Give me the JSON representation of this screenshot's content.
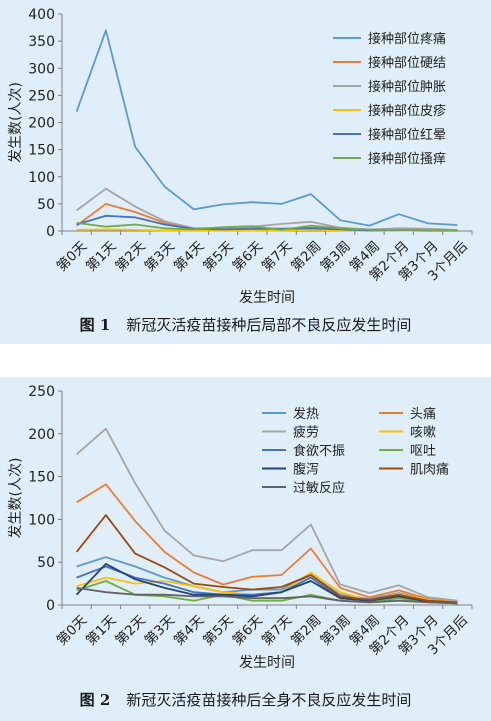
{
  "figures": [
    {
      "fig_label": "图 1",
      "caption": "新冠灭活疫苗接种后局部不良反应发生时间",
      "chart_data": {
        "type": "line",
        "xlabel": "发生时间",
        "ylabel": "发生数(人次)",
        "ylim": [
          0,
          400
        ],
        "yticks": [
          0,
          50,
          100,
          150,
          200,
          250,
          300,
          350,
          400
        ],
        "grid": false,
        "legend_position": "top-right",
        "categories": [
          "第0天",
          "第1天",
          "第2天",
          "第3天",
          "第4天",
          "第5天",
          "第6天",
          "第7天",
          "第2周",
          "第3周",
          "第4周",
          "第2个月",
          "第3个月",
          "3个月后"
        ],
        "series": [
          {
            "name": "接种部位疼痛",
            "color": "#5b9bd5",
            "values": [
              220,
              370,
              155,
              82,
              40,
              49,
              53,
              50,
              68,
              20,
              10,
              31,
              14,
              11
            ]
          },
          {
            "name": "接种部位硬结",
            "color": "#ed7d31",
            "values": [
              10,
              50,
              35,
              15,
              3,
              3,
              6,
              4,
              6,
              3,
              2,
              4,
              2,
              1
            ]
          },
          {
            "name": "接种部位肿胀",
            "color": "#a5a5a5",
            "values": [
              38,
              78,
              45,
              18,
              5,
              6,
              8,
              13,
              17,
              6,
              3,
              5,
              4,
              2
            ]
          },
          {
            "name": "接种部位皮疹",
            "color": "#ffc000",
            "values": [
              2,
              3,
              2,
              1,
              1,
              1,
              1,
              1,
              2,
              1,
              1,
              1,
              0,
              0
            ]
          },
          {
            "name": "接种部位红晕",
            "color": "#4472c4",
            "values": [
              12,
              28,
              25,
              12,
              4,
              3,
              4,
              4,
              5,
              3,
              1,
              2,
              1,
              1
            ]
          },
          {
            "name": "接种部位搔痒",
            "color": "#70ad47",
            "values": [
              15,
              8,
              12,
              5,
              3,
              7,
              9,
              2,
              10,
              5,
              2,
              2,
              1,
              1
            ]
          }
        ]
      }
    },
    {
      "fig_label": "图 2",
      "caption": "新冠灭活疫苗接种后全身不良反应发生时间",
      "chart_data": {
        "type": "line",
        "xlabel": "发生时间",
        "ylabel": "发生数(人次)",
        "ylim": [
          0,
          250
        ],
        "yticks": [
          0,
          50,
          100,
          150,
          200,
          250
        ],
        "grid": false,
        "legend_position": "top-right",
        "categories": [
          "第0天",
          "第1天",
          "第2天",
          "第3天",
          "第4天",
          "第5天",
          "第6天",
          "第7天",
          "第2周",
          "第3周",
          "第4周",
          "第2个月",
          "第3个月",
          "3个月后"
        ],
        "series": [
          {
            "name": "发热",
            "color": "#5b9bd5",
            "values": [
              45,
              56,
              45,
              32,
              22,
              15,
              18,
              18,
              35,
              12,
              7,
              14,
              6,
              4
            ]
          },
          {
            "name": "头痛",
            "color": "#ed7d31",
            "values": [
              120,
              141,
              98,
              62,
              38,
              24,
              33,
              35,
              66,
              20,
              9,
              17,
              7,
              4
            ]
          },
          {
            "name": "疲劳",
            "color": "#a5a5a5",
            "values": [
              176,
              206,
              142,
              87,
              58,
              51,
              64,
              64,
              94,
              24,
              14,
              23,
              9,
              5
            ]
          },
          {
            "name": "咳嗽",
            "color": "#ffc000",
            "values": [
              22,
              32,
              25,
              28,
              22,
              15,
              12,
              15,
              38,
              15,
              5,
              13,
              6,
              3
            ]
          },
          {
            "name": "食欲不振",
            "color": "#4472c4",
            "values": [
              32,
              45,
              32,
              25,
              15,
              12,
              12,
              15,
              32,
              8,
              5,
              10,
              4,
              3
            ]
          },
          {
            "name": "呕吐",
            "color": "#70ad47",
            "values": [
              17,
              28,
              12,
              10,
              5,
              12,
              5,
              5,
              12,
              5,
              3,
              8,
              3,
              2
            ]
          },
          {
            "name": "腹泻",
            "color": "#264478",
            "values": [
              12,
              48,
              30,
              20,
              12,
              12,
              10,
              15,
              28,
              8,
              5,
              10,
              4,
              2
            ]
          },
          {
            "name": "肌肉痛",
            "color": "#9e480e",
            "values": [
              62,
              105,
              60,
              44,
              25,
              21,
              18,
              21,
              35,
              10,
              6,
              12,
              5,
              3
            ]
          },
          {
            "name": "过敏反应",
            "color": "#636363",
            "values": [
              20,
              15,
              12,
              12,
              10,
              10,
              8,
              8,
              10,
              5,
              3,
              5,
              3,
              2
            ]
          }
        ]
      }
    }
  ]
}
